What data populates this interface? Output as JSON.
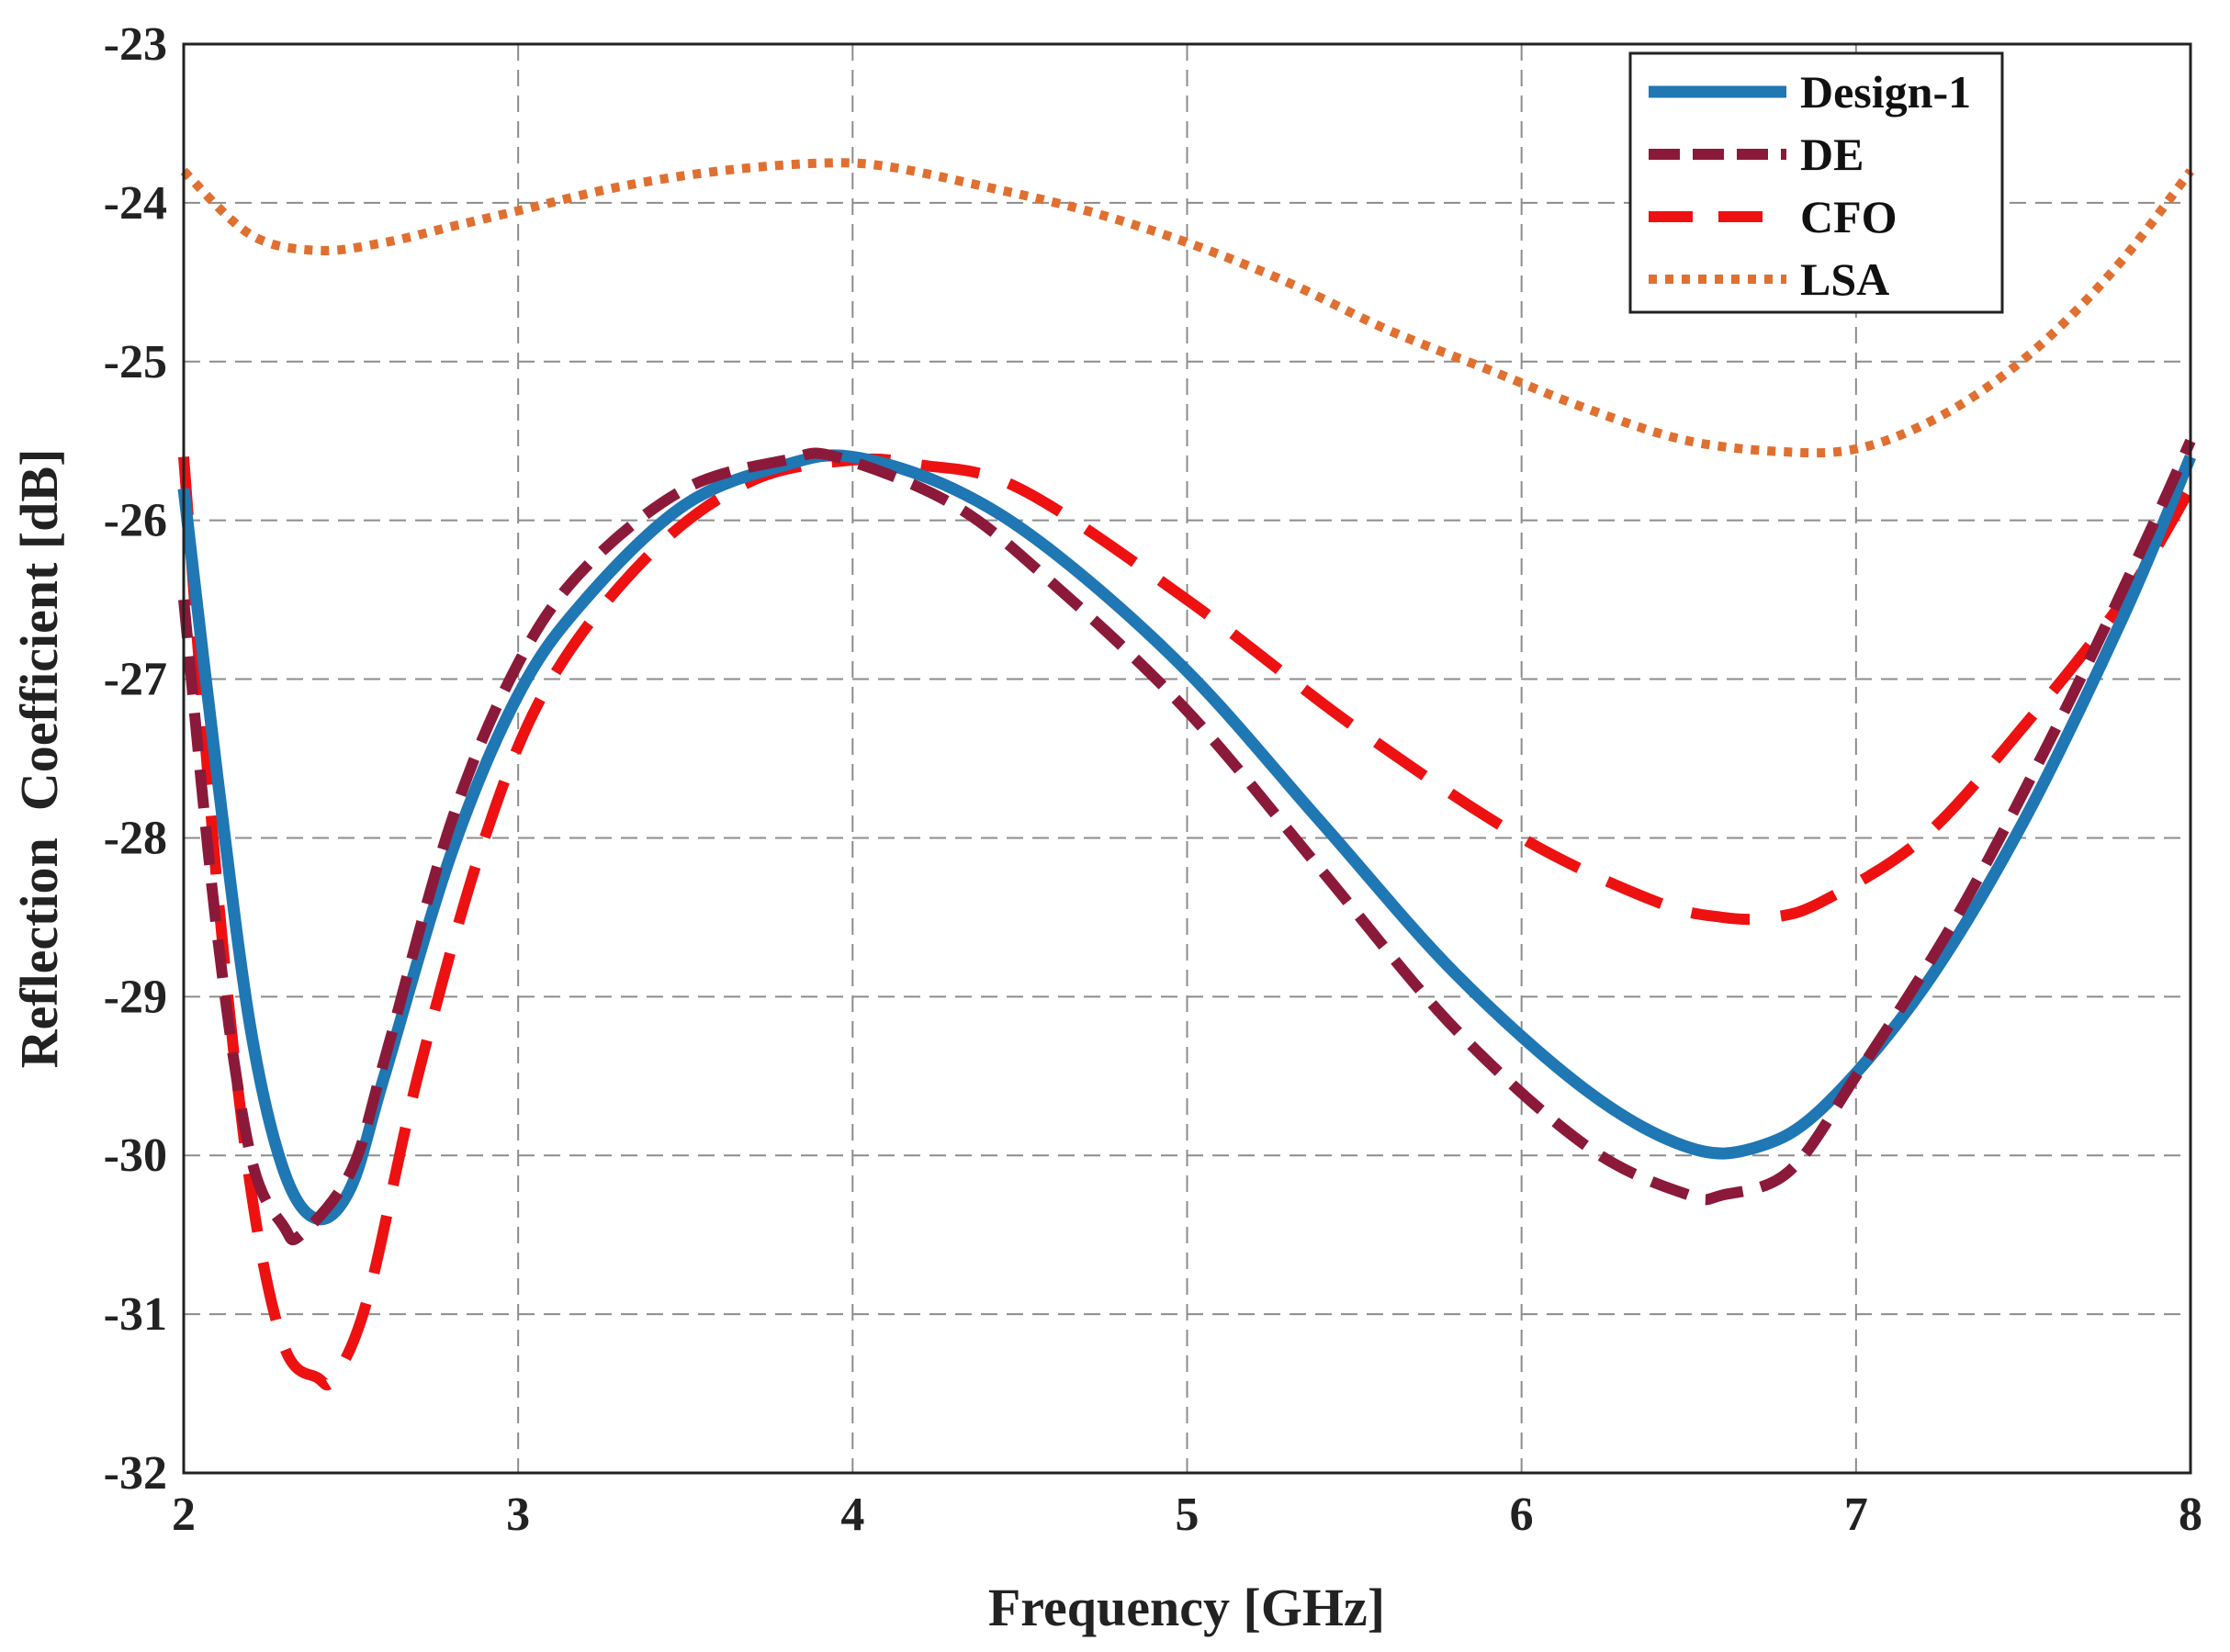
{
  "chart_data": {
    "type": "line",
    "title": "",
    "xlabel": "Frequency [GHz]",
    "ylabel": "Reflection  Coefficient [dB]",
    "xlim": [
      2,
      8
    ],
    "ylim": [
      -32,
      -23
    ],
    "xticks": [
      2,
      3,
      4,
      5,
      6,
      7,
      8
    ],
    "yticks": [
      -23,
      -24,
      -25,
      -26,
      -27,
      -28,
      -29,
      -30,
      -31,
      -32
    ],
    "grid": true,
    "legend_position": "top-right",
    "series": [
      {
        "name": "Design-1",
        "color": "#1f77b4",
        "style": "solid",
        "x": [
          2.0,
          2.1,
          2.2,
          2.3,
          2.4,
          2.5,
          2.6,
          2.8,
          3.0,
          3.2,
          3.5,
          3.8,
          4.0,
          4.3,
          4.6,
          5.0,
          5.4,
          5.8,
          6.2,
          6.5,
          6.7,
          6.9,
          7.2,
          7.5,
          7.8,
          8.0
        ],
        "y": [
          -25.8,
          -27.6,
          -29.2,
          -30.1,
          -30.4,
          -30.2,
          -29.5,
          -28.1,
          -27.1,
          -26.5,
          -25.9,
          -25.65,
          -25.6,
          -25.8,
          -26.2,
          -26.95,
          -27.9,
          -28.85,
          -29.6,
          -29.95,
          -29.95,
          -29.7,
          -28.95,
          -27.9,
          -26.6,
          -25.6
        ]
      },
      {
        "name": "DE",
        "color": "#8b1a3a",
        "style": "dashed",
        "x": [
          2.0,
          2.1,
          2.2,
          2.3,
          2.35,
          2.5,
          2.6,
          2.8,
          3.0,
          3.2,
          3.5,
          3.8,
          3.95,
          4.3,
          4.6,
          5.0,
          5.4,
          5.8,
          6.2,
          6.5,
          6.6,
          6.8,
          7.0,
          7.3,
          7.6,
          7.85,
          8.0
        ],
        "y": [
          -26.5,
          -28.6,
          -30.0,
          -30.45,
          -30.5,
          -30.1,
          -29.4,
          -27.9,
          -26.9,
          -26.3,
          -25.8,
          -25.62,
          -25.6,
          -25.9,
          -26.4,
          -27.2,
          -28.2,
          -29.2,
          -29.95,
          -30.25,
          -30.25,
          -30.1,
          -29.5,
          -28.5,
          -27.3,
          -26.2,
          -25.5
        ]
      },
      {
        "name": "CFO",
        "color": "#ee1111",
        "style": "long-dashed",
        "x": [
          2.0,
          2.1,
          2.2,
          2.3,
          2.4,
          2.45,
          2.55,
          2.7,
          2.9,
          3.1,
          3.4,
          3.7,
          4.0,
          4.2,
          4.5,
          5.0,
          5.5,
          6.0,
          6.4,
          6.6,
          6.75,
          6.9,
          7.2,
          7.5,
          7.8,
          8.0
        ],
        "y": [
          -25.6,
          -28.3,
          -30.2,
          -31.2,
          -31.4,
          -31.4,
          -30.9,
          -29.5,
          -28.0,
          -27.0,
          -26.2,
          -25.75,
          -25.62,
          -25.65,
          -25.8,
          -26.5,
          -27.3,
          -28.0,
          -28.4,
          -28.5,
          -28.5,
          -28.4,
          -28.0,
          -27.3,
          -26.5,
          -25.8
        ]
      },
      {
        "name": "LSA",
        "color": "#e07030",
        "style": "dotted",
        "x": [
          2.0,
          2.2,
          2.4,
          2.6,
          2.8,
          3.0,
          3.3,
          3.6,
          3.9,
          4.1,
          4.4,
          4.7,
          5.0,
          5.3,
          5.6,
          5.9,
          6.2,
          6.5,
          6.8,
          7.0,
          7.2,
          7.4,
          7.6,
          7.8,
          8.0
        ],
        "y": [
          -23.8,
          -24.2,
          -24.3,
          -24.25,
          -24.15,
          -24.05,
          -23.9,
          -23.8,
          -23.75,
          -23.77,
          -23.9,
          -24.05,
          -24.25,
          -24.5,
          -24.8,
          -25.05,
          -25.3,
          -25.5,
          -25.57,
          -25.55,
          -25.4,
          -25.15,
          -24.8,
          -24.35,
          -23.8
        ]
      }
    ]
  }
}
